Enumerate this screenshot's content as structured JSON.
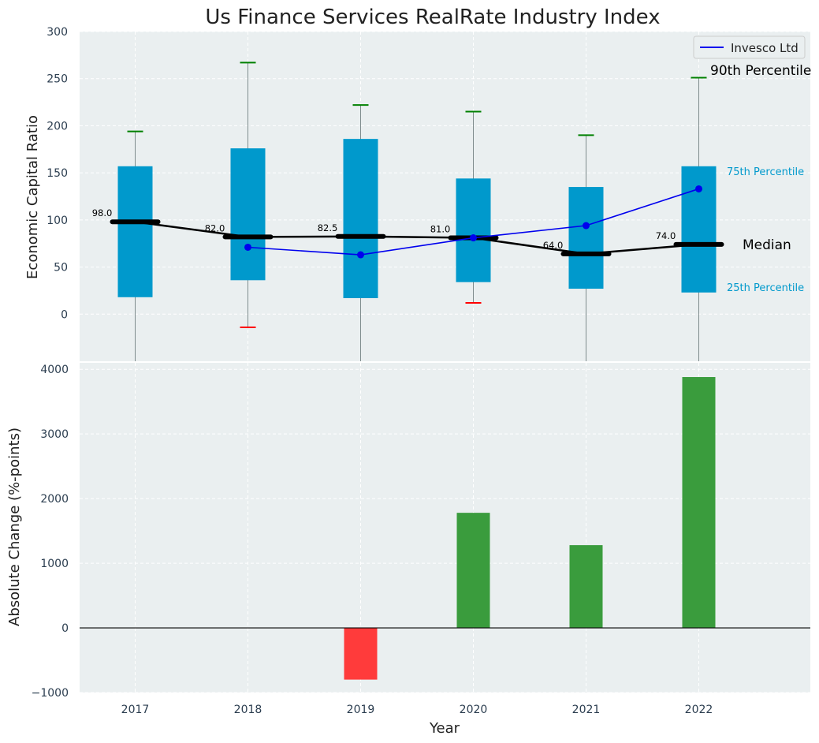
{
  "colors": {
    "panel_bg": "#eaeff0",
    "grid": "#ffffff",
    "box": "#0099cc",
    "whisker_line": "#7f8c8d",
    "whisker_cap_top": "#008000",
    "whisker_cap_bottom": "#ff0000",
    "median": "#000000",
    "invesco": "#0000ee",
    "bar_positive": "#3a9c3d",
    "bar_negative": "#ff3b3b",
    "tick_text": "#2c3e50"
  },
  "chart_data": [
    {
      "type": "box",
      "title": "Us Finance Services RealRate Industry Index",
      "xlabel": "",
      "ylabel": "Economic Capital Ratio",
      "ylim": [
        -50,
        300
      ],
      "yticks": [
        0,
        50,
        100,
        150,
        200,
        250,
        300
      ],
      "grid": true,
      "legend_position": "top-right",
      "categories": [
        "2017",
        "2018",
        "2019",
        "2020",
        "2021",
        "2022"
      ],
      "q1": [
        18,
        36,
        17,
        34,
        27,
        23
      ],
      "q3": [
        157,
        176,
        186,
        144,
        135,
        157
      ],
      "median": [
        98.0,
        82.0,
        82.5,
        81.0,
        64.0,
        74.0
      ],
      "median_labels": [
        "98.0",
        "82.0",
        "82.5",
        "81.0",
        "64.0",
        "74.0"
      ],
      "whisker_high": [
        194,
        267,
        222,
        215,
        190,
        251
      ],
      "whisker_low": [
        -50,
        -14,
        -50,
        12,
        -50,
        -50
      ],
      "low_cap_shown": [
        false,
        true,
        false,
        true,
        false,
        false
      ],
      "series": [
        {
          "name": "Invesco Ltd",
          "values": [
            null,
            71,
            63,
            81,
            94,
            133
          ]
        }
      ],
      "annotations": {
        "p90": "90th Percentile",
        "p75": "75th Percentile",
        "median": "Median",
        "p25": "25th Percentile"
      }
    },
    {
      "type": "bar",
      "xlabel": "Year",
      "ylabel": "Absolute Change (%-points)",
      "ylim": [
        -1000,
        4100
      ],
      "yticks": [
        -1000,
        0,
        1000,
        2000,
        3000,
        4000
      ],
      "ytick_labels": [
        "−1000",
        "0",
        "1000",
        "2000",
        "3000",
        "4000"
      ],
      "grid": true,
      "categories": [
        "2017",
        "2018",
        "2019",
        "2020",
        "2021",
        "2022"
      ],
      "values": [
        0,
        0,
        -800,
        1780,
        1280,
        3880
      ]
    }
  ]
}
